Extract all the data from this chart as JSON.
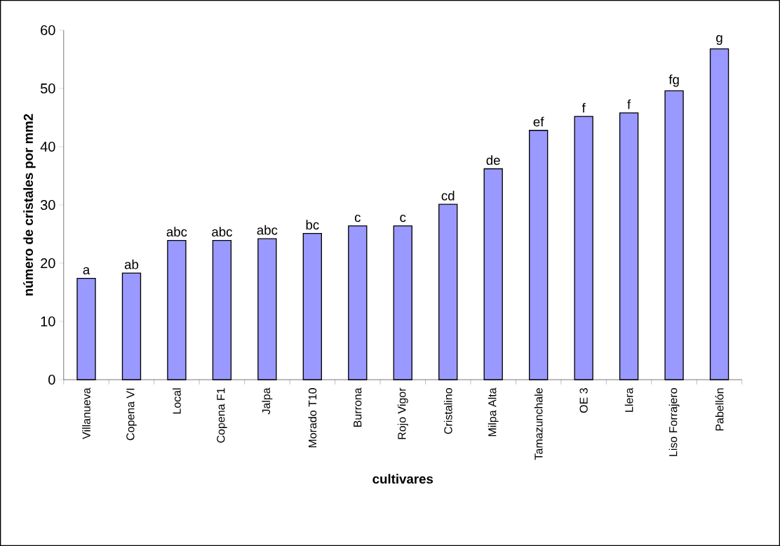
{
  "chart_data": {
    "type": "bar",
    "xlabel": "cultivares",
    "ylabel": "número de cristales por mm2",
    "categories": [
      "Villanueva",
      "Copena VI",
      "Local",
      "Copena F1",
      "Jalpa",
      "Morado T10",
      "Burrona",
      "Rojo Vigor",
      "Cristalino",
      "Milpa Alta",
      "Tamazunchale",
      "OE 3",
      "Llera",
      "Liso Forrajero",
      "Pabellón"
    ],
    "values": [
      17.4,
      18.3,
      23.9,
      23.9,
      24.2,
      25.1,
      26.4,
      26.4,
      30.1,
      36.2,
      42.8,
      45.2,
      45.8,
      49.6,
      56.8
    ],
    "color": "#9999ff",
    "ylim": [
      0,
      60
    ],
    "yticks": [
      0,
      10,
      20,
      30,
      40,
      50,
      60
    ],
    "annotations": [
      {
        "text": "a",
        "x": "Villanueva",
        "y": 17.4
      },
      {
        "text": "ab",
        "x": "Copena VI",
        "y": 18.3
      },
      {
        "text": "abc",
        "x": "Local",
        "y": 23.9
      },
      {
        "text": "abc",
        "x": "Copena F1",
        "y": 23.9
      },
      {
        "text": "abc",
        "x": "Jalpa",
        "y": 24.2
      },
      {
        "text": "bc",
        "x": "Morado T10",
        "y": 25.1
      },
      {
        "text": "c",
        "x": "Burrona",
        "y": 26.4
      },
      {
        "text": "c",
        "x": "Rojo Vigor",
        "y": 26.4
      },
      {
        "text": "cd",
        "x": "Cristalino",
        "y": 30.1
      },
      {
        "text": "de",
        "x": "Milpa Alta",
        "y": 36.2
      },
      {
        "text": "ef",
        "x": "Tamazunchale",
        "y": 42.8
      },
      {
        "text": "f",
        "x": "OE 3",
        "y": 45.2
      },
      {
        "text": "f",
        "x": "Llera",
        "y": 45.8
      },
      {
        "text": "fg",
        "x": "Liso Forrajero",
        "y": 49.6
      },
      {
        "text": "g",
        "x": "Pabellón",
        "y": 56.8
      }
    ]
  }
}
